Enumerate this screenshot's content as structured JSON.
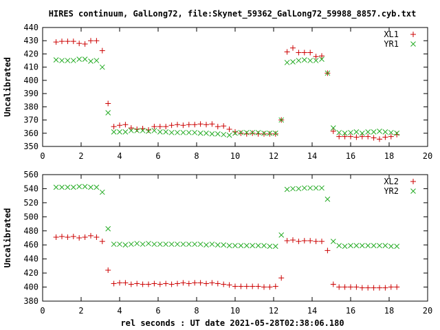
{
  "title": "HIRES continuum, GalLong72, file:Skynet_59362_GalLong72_59988_8857.cyb.txt",
  "xlabel": "rel seconds : UT date 2021-05-28T02:38:06.180",
  "colors": {
    "series1": "#cc0000",
    "series2": "#22aa22",
    "axis": "#000000"
  },
  "chart_data": [
    {
      "type": "scatter",
      "ylabel": "Uncalibrated",
      "xlim": [
        0,
        20
      ],
      "ylim": [
        350,
        440
      ],
      "xticks": [
        0,
        2,
        4,
        6,
        8,
        10,
        12,
        14,
        16,
        18,
        20
      ],
      "yticks": [
        350,
        360,
        370,
        380,
        390,
        400,
        410,
        420,
        430,
        440
      ],
      "grid": false,
      "legend_position": "top-right",
      "series": [
        {
          "name": "XL1",
          "marker": "plus",
          "points": [
            [
              0.7,
              429
            ],
            [
              1.0,
              429.5
            ],
            [
              1.3,
              429.5
            ],
            [
              1.6,
              429.5
            ],
            [
              1.9,
              428
            ],
            [
              2.2,
              427.5
            ],
            [
              2.5,
              430
            ],
            [
              2.8,
              430
            ],
            [
              3.1,
              422.5
            ],
            [
              3.4,
              382.5
            ],
            [
              3.7,
              365
            ],
            [
              4.0,
              366
            ],
            [
              4.3,
              366.5
            ],
            [
              4.6,
              364
            ],
            [
              4.9,
              363
            ],
            [
              5.2,
              363.5
            ],
            [
              5.5,
              362.5
            ],
            [
              5.8,
              365
            ],
            [
              6.1,
              365
            ],
            [
              6.4,
              365
            ],
            [
              6.7,
              366
            ],
            [
              7.0,
              366.5
            ],
            [
              7.3,
              366
            ],
            [
              7.6,
              366.5
            ],
            [
              7.9,
              366.5
            ],
            [
              8.2,
              367
            ],
            [
              8.5,
              366.5
            ],
            [
              8.8,
              367
            ],
            [
              9.1,
              365
            ],
            [
              9.4,
              365.5
            ],
            [
              9.7,
              363
            ],
            [
              10.0,
              361
            ],
            [
              10.3,
              360
            ],
            [
              10.6,
              359.5
            ],
            [
              10.9,
              360
            ],
            [
              11.2,
              359.5
            ],
            [
              11.5,
              359.5
            ],
            [
              11.8,
              359.5
            ],
            [
              12.1,
              359.5
            ],
            [
              12.4,
              370
            ],
            [
              12.7,
              421.5
            ],
            [
              13.0,
              424.5
            ],
            [
              13.3,
              421
            ],
            [
              13.6,
              421
            ],
            [
              13.9,
              421
            ],
            [
              14.2,
              418
            ],
            [
              14.5,
              418.5
            ],
            [
              14.8,
              405.5
            ],
            [
              15.1,
              361.5
            ],
            [
              15.4,
              357.5
            ],
            [
              15.7,
              357.5
            ],
            [
              16.0,
              357.5
            ],
            [
              16.3,
              357
            ],
            [
              16.6,
              357.5
            ],
            [
              16.9,
              357.5
            ],
            [
              17.2,
              356.5
            ],
            [
              17.5,
              355.5
            ],
            [
              17.8,
              357
            ],
            [
              18.1,
              357.5
            ],
            [
              18.4,
              359
            ]
          ]
        },
        {
          "name": "YR1",
          "marker": "cross",
          "points": [
            [
              0.7,
              415.5
            ],
            [
              1.0,
              415
            ],
            [
              1.3,
              415
            ],
            [
              1.6,
              415
            ],
            [
              1.9,
              416
            ],
            [
              2.2,
              416
            ],
            [
              2.5,
              414.5
            ],
            [
              2.8,
              415
            ],
            [
              3.1,
              410
            ],
            [
              3.4,
              375.5
            ],
            [
              3.7,
              361
            ],
            [
              4.0,
              361
            ],
            [
              4.3,
              361
            ],
            [
              4.6,
              362
            ],
            [
              4.9,
              362
            ],
            [
              5.2,
              362
            ],
            [
              5.5,
              361.5
            ],
            [
              5.8,
              362
            ],
            [
              6.1,
              361
            ],
            [
              6.4,
              361
            ],
            [
              6.7,
              360.5
            ],
            [
              7.0,
              360.5
            ],
            [
              7.3,
              360.5
            ],
            [
              7.6,
              360.5
            ],
            [
              7.9,
              360.5
            ],
            [
              8.2,
              360
            ],
            [
              8.5,
              360
            ],
            [
              8.8,
              359.5
            ],
            [
              9.1,
              359.5
            ],
            [
              9.4,
              359
            ],
            [
              9.7,
              358.5
            ],
            [
              10.0,
              360
            ],
            [
              10.3,
              360.5
            ],
            [
              10.6,
              360.5
            ],
            [
              10.9,
              360.5
            ],
            [
              11.2,
              360.5
            ],
            [
              11.5,
              360
            ],
            [
              11.8,
              360
            ],
            [
              12.1,
              360
            ],
            [
              12.4,
              370
            ],
            [
              12.7,
              413.5
            ],
            [
              13.0,
              414
            ],
            [
              13.3,
              415
            ],
            [
              13.6,
              415.5
            ],
            [
              13.9,
              415
            ],
            [
              14.2,
              415
            ],
            [
              14.5,
              416
            ],
            [
              14.8,
              405.5
            ],
            [
              15.1,
              364
            ],
            [
              15.4,
              360.5
            ],
            [
              15.7,
              360
            ],
            [
              16.0,
              360.5
            ],
            [
              16.3,
              361
            ],
            [
              16.6,
              360
            ],
            [
              16.9,
              361
            ],
            [
              17.2,
              361
            ],
            [
              17.5,
              361.5
            ],
            [
              17.8,
              361
            ],
            [
              18.1,
              360.5
            ],
            [
              18.4,
              360
            ]
          ]
        }
      ]
    },
    {
      "type": "scatter",
      "ylabel": "Uncalibrated",
      "xlim": [
        0,
        20
      ],
      "ylim": [
        380,
        560
      ],
      "xticks": [
        0,
        2,
        4,
        6,
        8,
        10,
        12,
        14,
        16,
        18,
        20
      ],
      "yticks": [
        380,
        400,
        420,
        440,
        460,
        480,
        500,
        520,
        540,
        560
      ],
      "grid": false,
      "legend_position": "top-right",
      "series": [
        {
          "name": "XL2",
          "marker": "plus",
          "points": [
            [
              0.7,
              471
            ],
            [
              1.0,
              472
            ],
            [
              1.3,
              471
            ],
            [
              1.6,
              472
            ],
            [
              1.9,
              470
            ],
            [
              2.2,
              471
            ],
            [
              2.5,
              473
            ],
            [
              2.8,
              471
            ],
            [
              3.1,
              465
            ],
            [
              3.4,
              424
            ],
            [
              3.7,
              405
            ],
            [
              4.0,
              406
            ],
            [
              4.3,
              406
            ],
            [
              4.6,
              404
            ],
            [
              4.9,
              405
            ],
            [
              5.2,
              404
            ],
            [
              5.5,
              404
            ],
            [
              5.8,
              405
            ],
            [
              6.1,
              404
            ],
            [
              6.4,
              405
            ],
            [
              6.7,
              404
            ],
            [
              7.0,
              405
            ],
            [
              7.3,
              406
            ],
            [
              7.6,
              405
            ],
            [
              7.9,
              406
            ],
            [
              8.2,
              406
            ],
            [
              8.5,
              405
            ],
            [
              8.8,
              406
            ],
            [
              9.1,
              405
            ],
            [
              9.4,
              404
            ],
            [
              9.7,
              403
            ],
            [
              10.0,
              401
            ],
            [
              10.3,
              401
            ],
            [
              10.6,
              401
            ],
            [
              10.9,
              401
            ],
            [
              11.2,
              401
            ],
            [
              11.5,
              400
            ],
            [
              11.8,
              400
            ],
            [
              12.1,
              401
            ],
            [
              12.4,
              413
            ],
            [
              12.7,
              466
            ],
            [
              13.0,
              467
            ],
            [
              13.3,
              465
            ],
            [
              13.6,
              466
            ],
            [
              13.9,
              466
            ],
            [
              14.2,
              465
            ],
            [
              14.5,
              465
            ],
            [
              14.8,
              452
            ],
            [
              15.1,
              404
            ],
            [
              15.4,
              400
            ],
            [
              15.7,
              400
            ],
            [
              16.0,
              400
            ],
            [
              16.3,
              400
            ],
            [
              16.6,
              399
            ],
            [
              16.9,
              399
            ],
            [
              17.2,
              399
            ],
            [
              17.5,
              399
            ],
            [
              17.8,
              399
            ],
            [
              18.1,
              400
            ],
            [
              18.4,
              400
            ]
          ]
        },
        {
          "name": "YR2",
          "marker": "cross",
          "points": [
            [
              0.7,
              542
            ],
            [
              1.0,
              542
            ],
            [
              1.3,
              542
            ],
            [
              1.6,
              542
            ],
            [
              1.9,
              543
            ],
            [
              2.2,
              543
            ],
            [
              2.5,
              542
            ],
            [
              2.8,
              542
            ],
            [
              3.1,
              535
            ],
            [
              3.4,
              483
            ],
            [
              3.7,
              461
            ],
            [
              4.0,
              461
            ],
            [
              4.3,
              460
            ],
            [
              4.6,
              461
            ],
            [
              4.9,
              462
            ],
            [
              5.2,
              461
            ],
            [
              5.5,
              462
            ],
            [
              5.8,
              461
            ],
            [
              6.1,
              461
            ],
            [
              6.4,
              461
            ],
            [
              6.7,
              461
            ],
            [
              7.0,
              461
            ],
            [
              7.3,
              461
            ],
            [
              7.6,
              461
            ],
            [
              7.9,
              461
            ],
            [
              8.2,
              461
            ],
            [
              8.5,
              460
            ],
            [
              8.8,
              461
            ],
            [
              9.1,
              460
            ],
            [
              9.4,
              460
            ],
            [
              9.7,
              459
            ],
            [
              10.0,
              459
            ],
            [
              10.3,
              459
            ],
            [
              10.6,
              459
            ],
            [
              10.9,
              459
            ],
            [
              11.2,
              459
            ],
            [
              11.5,
              459
            ],
            [
              11.8,
              458
            ],
            [
              12.1,
              458
            ],
            [
              12.4,
              474
            ],
            [
              12.7,
              539
            ],
            [
              13.0,
              540
            ],
            [
              13.3,
              540
            ],
            [
              13.6,
              541
            ],
            [
              13.9,
              541
            ],
            [
              14.2,
              541
            ],
            [
              14.5,
              541
            ],
            [
              14.8,
              525
            ],
            [
              15.1,
              465
            ],
            [
              15.4,
              459
            ],
            [
              15.7,
              458
            ],
            [
              16.0,
              459
            ],
            [
              16.3,
              459
            ],
            [
              16.6,
              459
            ],
            [
              16.9,
              459
            ],
            [
              17.2,
              459
            ],
            [
              17.5,
              459
            ],
            [
              17.8,
              459
            ],
            [
              18.1,
              458
            ],
            [
              18.4,
              458
            ]
          ]
        }
      ]
    }
  ]
}
